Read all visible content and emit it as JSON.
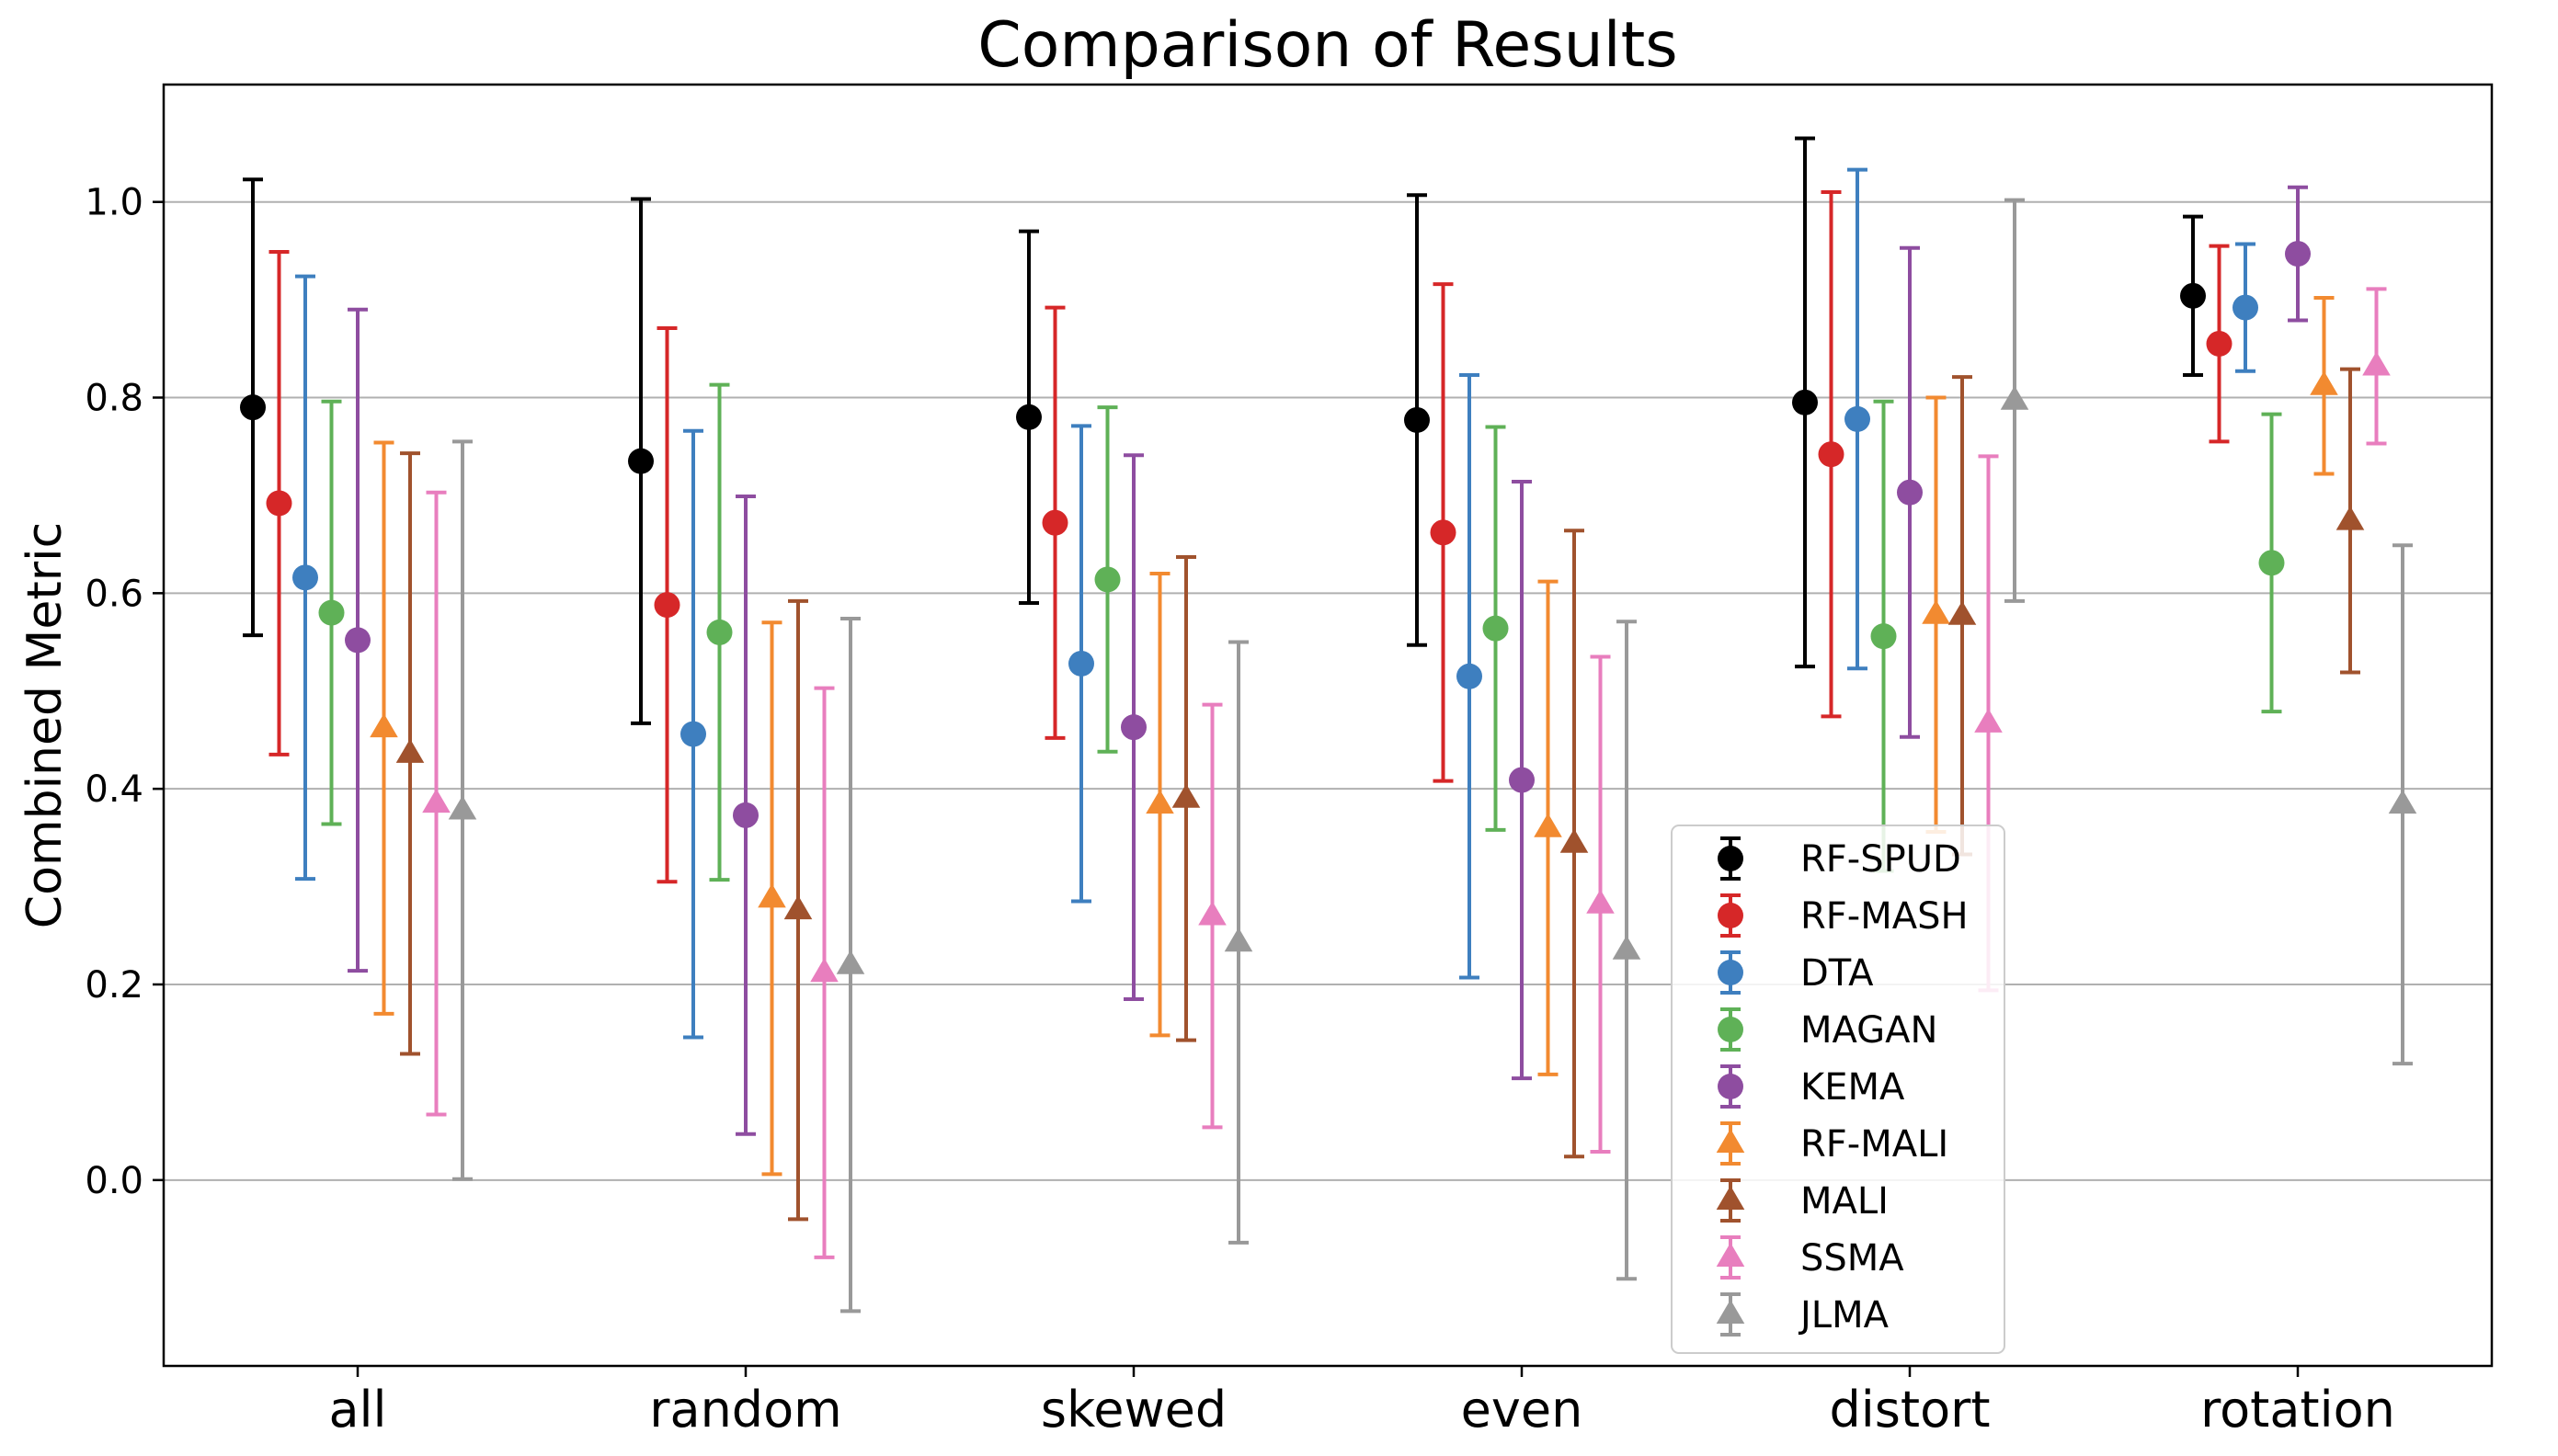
{
  "chart_data": {
    "type": "scatter",
    "title": "Comparison of Results",
    "xlabel": "",
    "ylabel": "Combined Metric",
    "categories": [
      "all",
      "random",
      "skewed",
      "even",
      "distort",
      "rotation"
    ],
    "ylim": [
      -0.19,
      1.12
    ],
    "yticks": [
      "0.0",
      "0.2",
      "0.4",
      "0.6",
      "0.8",
      "1.0"
    ],
    "grid": "horizontal",
    "legend_position": "lower-center",
    "series": [
      {
        "name": "RF-SPUD",
        "marker": "circle",
        "color": "#000000",
        "values": [
          0.79,
          0.735,
          0.78,
          0.777,
          0.795,
          0.904
        ],
        "errors": [
          0.233,
          0.268,
          0.19,
          0.23,
          0.27,
          0.081
        ]
      },
      {
        "name": "RF-MASH",
        "marker": "circle",
        "color": "#d62728",
        "values": [
          0.692,
          0.588,
          0.672,
          0.662,
          0.742,
          0.855
        ],
        "errors": [
          0.257,
          0.283,
          0.22,
          0.254,
          0.268,
          0.1
        ]
      },
      {
        "name": "DTA",
        "marker": "circle",
        "color": "#3e7fbf",
        "values": [
          0.616,
          0.456,
          0.528,
          0.515,
          0.778,
          0.892
        ],
        "errors": [
          0.308,
          0.31,
          0.243,
          0.308,
          0.255,
          0.065
        ]
      },
      {
        "name": "MAGAN",
        "marker": "circle",
        "color": "#5fb157",
        "values": [
          0.58,
          0.56,
          0.614,
          0.564,
          0.556,
          0.631
        ],
        "errors": [
          0.216,
          0.253,
          0.176,
          0.206,
          0.24,
          0.152
        ]
      },
      {
        "name": "KEMA",
        "marker": "circle",
        "color": "#8e4da0",
        "values": [
          0.552,
          0.373,
          0.463,
          0.409,
          0.703,
          0.947
        ],
        "errors": [
          0.338,
          0.326,
          0.278,
          0.305,
          0.25,
          0.068
        ]
      },
      {
        "name": "RF-MALI",
        "marker": "triangle",
        "color": "#f28a30",
        "values": [
          0.462,
          0.288,
          0.384,
          0.36,
          0.578,
          0.812
        ],
        "errors": [
          0.292,
          0.282,
          0.236,
          0.252,
          0.222,
          0.09
        ]
      },
      {
        "name": "MALI",
        "marker": "triangle",
        "color": "#a0522d",
        "values": [
          0.436,
          0.276,
          0.39,
          0.344,
          0.577,
          0.674
        ],
        "errors": [
          0.307,
          0.316,
          0.247,
          0.32,
          0.244,
          0.155
        ]
      },
      {
        "name": "SSMA",
        "marker": "triangle",
        "color": "#e87ebe",
        "values": [
          0.385,
          0.212,
          0.27,
          0.282,
          0.467,
          0.832
        ],
        "errors": [
          0.318,
          0.291,
          0.216,
          0.253,
          0.273,
          0.079
        ]
      },
      {
        "name": "JLMA",
        "marker": "triangle",
        "color": "#999999",
        "values": [
          0.378,
          0.22,
          0.243,
          0.235,
          0.797,
          0.384
        ],
        "errors": [
          0.377,
          0.354,
          0.307,
          0.336,
          0.205,
          0.265
        ]
      }
    ]
  }
}
